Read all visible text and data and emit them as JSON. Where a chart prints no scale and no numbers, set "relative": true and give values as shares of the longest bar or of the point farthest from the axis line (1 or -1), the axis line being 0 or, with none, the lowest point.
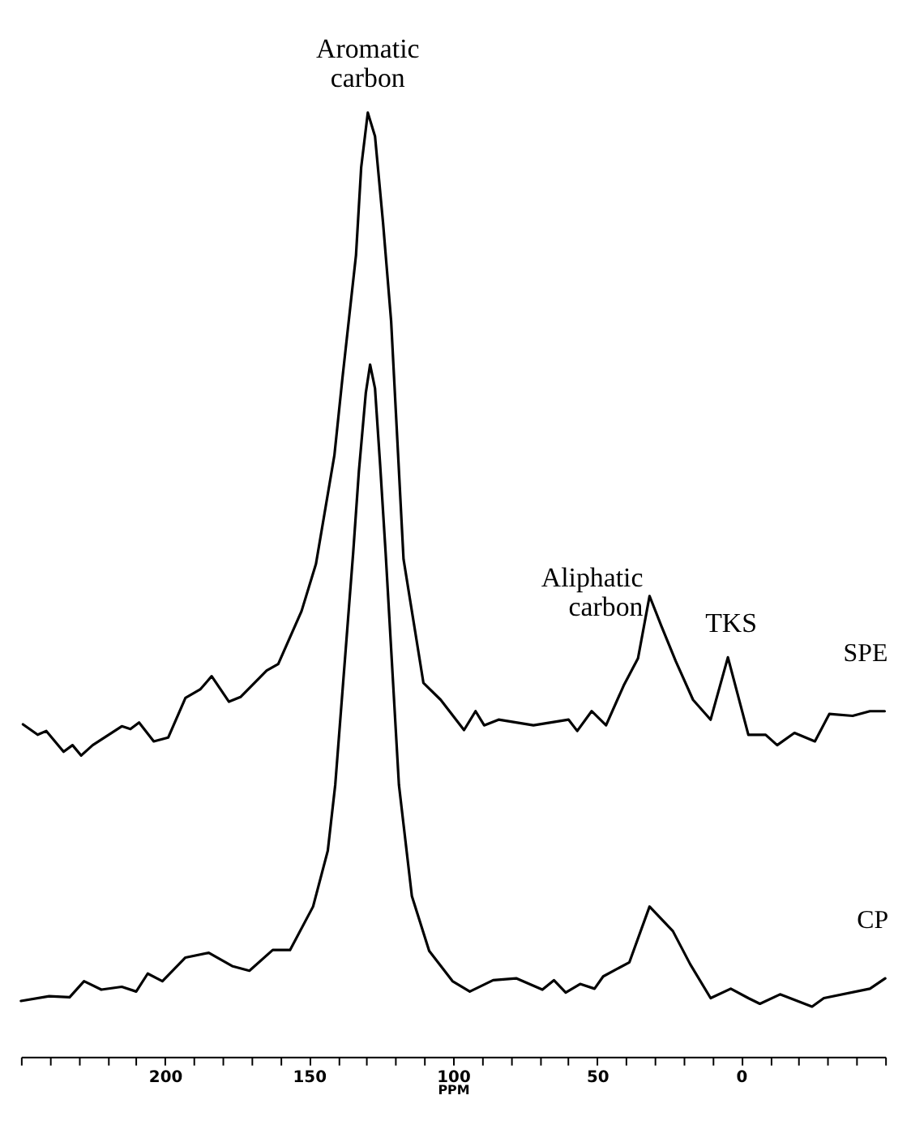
{
  "chart_data": {
    "type": "line",
    "relative": true,
    "xlabel": "PPM",
    "xlim": [
      250,
      -50
    ],
    "xticks": [
      {
        "value": 250,
        "label": null
      },
      {
        "value": 240,
        "label": null
      },
      {
        "value": 230,
        "label": null
      },
      {
        "value": 220,
        "label": null
      },
      {
        "value": 210,
        "label": null
      },
      200,
      {
        "value": 190,
        "label": null
      },
      {
        "value": 180,
        "label": null
      },
      {
        "value": 170,
        "label": null
      },
      {
        "value": 160,
        "label": null
      },
      150,
      {
        "value": 140,
        "label": null
      },
      {
        "value": 130,
        "label": null
      },
      {
        "value": 120,
        "label": null
      },
      {
        "value": 110,
        "label": null
      },
      100,
      {
        "value": 90,
        "label": null
      },
      {
        "value": 80,
        "label": null
      },
      {
        "value": 70,
        "label": null
      },
      {
        "value": 60,
        "label": null
      },
      50,
      {
        "value": 40,
        "label": null
      },
      {
        "value": 30,
        "label": null
      },
      {
        "value": 20,
        "label": null
      },
      {
        "value": 10,
        "label": null
      },
      0,
      {
        "value": -10,
        "label": null
      },
      {
        "value": -20,
        "label": null
      },
      {
        "value": -30,
        "label": null
      },
      {
        "value": -40,
        "label": null
      },
      {
        "value": -50,
        "label": null
      }
    ],
    "grid": false,
    "legend": false,
    "marker": "none",
    "line_style": "solid",
    "series": [
      {
        "name": "SPE",
        "color": "#000000",
        "x": [
          249.3,
          244.2,
          241.2,
          235.2,
          232.1,
          229.1,
          225.1,
          215,
          212,
          209,
          203.9,
          198.9,
          192.9,
          187.8,
          183.8,
          177.8,
          173.8,
          164.7,
          160.7,
          152.6,
          147.6,
          141.2,
          138.4,
          133.7,
          131.9,
          129.6,
          127.1,
          124.3,
          121.5,
          117.2,
          110.3,
          104.3,
          96.2,
          92.2,
          89.2,
          84.2,
          72.1,
          59.9,
          56.9,
          51.9,
          46.9,
          40.8,
          35.8,
          31.8,
          27.8,
          22.7,
          16.7,
          10.6,
          4.6,
          -2.5,
          -8.5,
          -12.5,
          -18.5,
          -25.6,
          -30.6,
          -38.7,
          -44.7,
          -49.8
        ],
        "values": [
          0.352,
          0.341,
          0.345,
          0.323,
          0.33,
          0.319,
          0.33,
          0.35,
          0.347,
          0.354,
          0.334,
          0.338,
          0.38,
          0.389,
          0.403,
          0.376,
          0.381,
          0.409,
          0.416,
          0.472,
          0.522,
          0.637,
          0.719,
          0.849,
          0.942,
          1.0,
          0.975,
          0.883,
          0.779,
          0.527,
          0.396,
          0.378,
          0.346,
          0.366,
          0.351,
          0.357,
          0.351,
          0.357,
          0.345,
          0.366,
          0.351,
          0.393,
          0.422,
          0.488,
          0.457,
          0.419,
          0.378,
          0.357,
          0.423,
          0.341,
          0.341,
          0.33,
          0.343,
          0.334,
          0.363,
          0.361,
          0.366,
          0.366
        ]
      },
      {
        "name": "CP",
        "color": "#000000",
        "x": [
          250,
          240.2,
          233.1,
          228.1,
          222.1,
          215,
          210,
          206,
          200.9,
          192.9,
          184.8,
          176.7,
          170.7,
          162.6,
          156.6,
          148.6,
          143.5,
          140.9,
          134.7,
          132.7,
          130.3,
          128.8,
          127.1,
          125.3,
          123.4,
          118.8,
          114.3,
          108.3,
          100.2,
          94.2,
          86.1,
          78.1,
          69,
          65,
          60.9,
          55.9,
          50.9,
          47.9,
          38.8,
          31.8,
          23.7,
          17.7,
          10.6,
          3.6,
          -2.5,
          -6.5,
          -13.5,
          -24.6,
          -28.7,
          -44.7,
          -50
        ],
        "values": [
          0.059,
          0.064,
          0.063,
          0.08,
          0.071,
          0.074,
          0.069,
          0.088,
          0.08,
          0.105,
          0.11,
          0.096,
          0.091,
          0.113,
          0.113,
          0.159,
          0.218,
          0.288,
          0.533,
          0.62,
          0.703,
          0.733,
          0.708,
          0.626,
          0.533,
          0.288,
          0.17,
          0.112,
          0.08,
          0.069,
          0.081,
          0.083,
          0.071,
          0.081,
          0.068,
          0.077,
          0.072,
          0.085,
          0.1,
          0.159,
          0.133,
          0.098,
          0.062,
          0.072,
          0.062,
          0.056,
          0.066,
          0.053,
          0.062,
          0.072,
          0.083
        ]
      }
    ],
    "annotations": [
      {
        "text": "Aromatic\ncarbon",
        "x": 129.6,
        "y": 1.0
      },
      {
        "text": "Aliphatic\ncarbon",
        "x": 31.8,
        "y": 0.488
      },
      {
        "text": "TKS",
        "x": 4.6,
        "y": 0.423
      }
    ]
  }
}
